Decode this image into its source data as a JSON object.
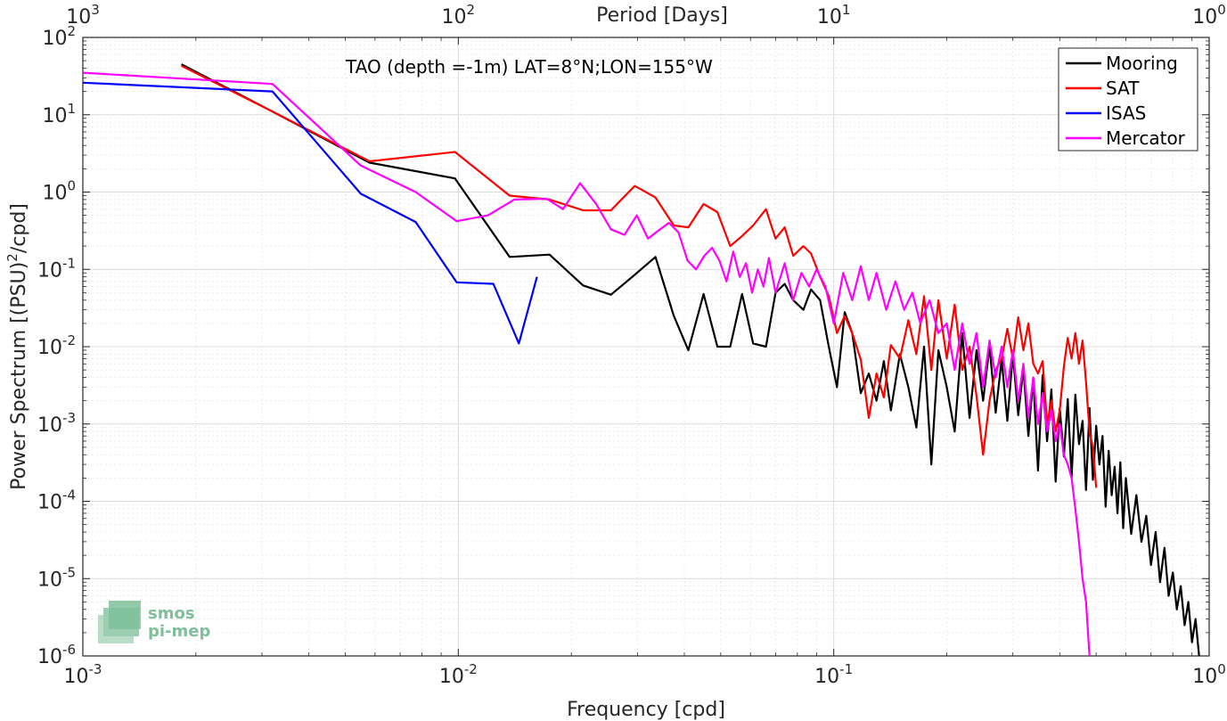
{
  "chart_data": {
    "type": "line",
    "title": "TAO (depth =-1m) LAT=8°N;LON=155°W",
    "xlabel": "Frequency [cpd]",
    "ylabel": "Power Spectrum [(PSU)",
    "ylabel_sup": "2",
    "ylabel_suffix": "/cpd]",
    "top_xlabel": "Period [Days]",
    "xscale": "log",
    "yscale": "log",
    "xlim": [
      0.001,
      1
    ],
    "ylim": [
      1e-06,
      100
    ],
    "grid": true,
    "legend_position": "top-right",
    "x_ticks": [
      {
        "base": "10",
        "exp": "-3"
      },
      {
        "base": "10",
        "exp": "-2"
      },
      {
        "base": "10",
        "exp": "-1"
      },
      {
        "base": "10",
        "exp": "0"
      }
    ],
    "y_ticks": [
      {
        "base": "10",
        "exp": "-6"
      },
      {
        "base": "10",
        "exp": "-5"
      },
      {
        "base": "10",
        "exp": "-4"
      },
      {
        "base": "10",
        "exp": "-3"
      },
      {
        "base": "10",
        "exp": "-2"
      },
      {
        "base": "10",
        "exp": "-1"
      },
      {
        "base": "10",
        "exp": "0"
      },
      {
        "base": "10",
        "exp": "1"
      },
      {
        "base": "10",
        "exp": "2"
      }
    ],
    "top_ticks": [
      {
        "base": "10",
        "exp": "3"
      },
      {
        "base": "10",
        "exp": "2"
      },
      {
        "base": "10",
        "exp": "1"
      },
      {
        "base": "10",
        "exp": "0"
      }
    ],
    "series": [
      {
        "name": "Mooring",
        "color": "#000000",
        "x": [
          0.00183,
          0.0032,
          0.0058,
          0.0098,
          0.0137,
          0.0175,
          0.0215,
          0.0255,
          0.0295,
          0.0335,
          0.0375,
          0.041,
          0.045,
          0.049,
          0.053,
          0.057,
          0.061,
          0.066,
          0.07,
          0.074,
          0.078,
          0.083,
          0.087,
          0.092,
          0.097,
          0.102,
          0.107,
          0.112,
          0.118,
          0.124,
          0.13,
          0.136,
          0.142,
          0.15,
          0.158,
          0.166,
          0.174,
          0.182,
          0.19,
          0.2,
          0.21,
          0.22,
          0.23,
          0.24,
          0.25,
          0.26,
          0.27,
          0.28,
          0.29,
          0.3,
          0.31,
          0.32,
          0.33,
          0.34,
          0.35,
          0.36,
          0.37,
          0.38,
          0.39,
          0.4,
          0.41,
          0.42,
          0.43,
          0.44,
          0.45,
          0.46,
          0.47,
          0.48,
          0.49,
          0.5,
          0.51,
          0.52,
          0.53,
          0.54,
          0.55,
          0.56,
          0.57,
          0.58,
          0.59,
          0.6,
          0.62,
          0.64,
          0.66,
          0.68,
          0.7,
          0.72,
          0.74,
          0.76,
          0.78,
          0.8,
          0.82,
          0.84,
          0.86,
          0.88,
          0.9,
          0.92,
          0.94
        ],
        "y": [
          45,
          11,
          2.4,
          1.5,
          0.145,
          0.155,
          0.062,
          0.047,
          0.085,
          0.145,
          0.025,
          0.009,
          0.048,
          0.01,
          0.01,
          0.048,
          0.011,
          0.01,
          0.05,
          0.065,
          0.04,
          0.03,
          0.055,
          0.04,
          0.01,
          0.003,
          0.028,
          0.015,
          0.0025,
          0.0045,
          0.002,
          0.0065,
          0.0015,
          0.008,
          0.003,
          0.0009,
          0.01,
          0.0003,
          0.009,
          0.003,
          0.0008,
          0.015,
          0.0012,
          0.009,
          0.002,
          0.01,
          0.0014,
          0.0068,
          0.0011,
          0.0079,
          0.0013,
          0.0052,
          0.0007,
          0.0039,
          0.00025,
          0.0043,
          0.0006,
          0.0028,
          0.00018,
          0.0016,
          0.00038,
          0.0021,
          0.0002,
          0.0024,
          0.00055,
          0.0011,
          0.00014,
          0.0016,
          0.00019,
          0.00095,
          0.0003,
          0.0007,
          8.5e-05,
          0.00045,
          0.00012,
          0.00028,
          7e-05,
          0.00032,
          4.5e-05,
          0.0002,
          3.8e-05,
          0.00012,
          3e-05,
          6.5e-05,
          1.5e-05,
          4e-05,
          9e-06,
          2.5e-05,
          6e-06,
          1.2e-05,
          4e-06,
          8e-06,
          2.5e-06,
          5e-06,
          1.5e-06,
          3e-06,
          1e-06
        ]
      },
      {
        "name": "SAT",
        "color": "#ff0000",
        "x": [
          0.00183,
          0.0032,
          0.0058,
          0.0098,
          0.0137,
          0.0175,
          0.0215,
          0.0255,
          0.0295,
          0.0335,
          0.0375,
          0.041,
          0.045,
          0.049,
          0.053,
          0.057,
          0.061,
          0.066,
          0.07,
          0.074,
          0.078,
          0.083,
          0.087,
          0.092,
          0.097,
          0.102,
          0.107,
          0.112,
          0.118,
          0.124,
          0.13,
          0.136,
          0.142,
          0.15,
          0.158,
          0.166,
          0.174,
          0.182,
          0.19,
          0.2,
          0.21,
          0.22,
          0.23,
          0.24,
          0.25,
          0.26,
          0.27,
          0.28,
          0.29,
          0.3,
          0.31,
          0.32,
          0.33,
          0.34,
          0.35,
          0.36,
          0.37,
          0.38,
          0.39,
          0.4,
          0.41,
          0.42,
          0.43,
          0.44,
          0.45,
          0.46,
          0.47,
          0.48,
          0.49,
          0.5
        ],
        "y": [
          43,
          11,
          2.5,
          3.3,
          0.9,
          0.8,
          0.58,
          0.58,
          1.2,
          0.85,
          0.37,
          0.35,
          0.7,
          0.55,
          0.2,
          0.27,
          0.37,
          0.6,
          0.25,
          0.35,
          0.15,
          0.2,
          0.16,
          0.08,
          0.045,
          0.015,
          0.025,
          0.015,
          0.0068,
          0.0012,
          0.0045,
          0.0022,
          0.0105,
          0.007,
          0.022,
          0.008,
          0.045,
          0.005,
          0.04,
          0.007,
          0.035,
          0.005,
          0.01,
          0.0023,
          0.0004,
          0.002,
          0.005,
          0.007,
          0.017,
          0.007,
          0.024,
          0.009,
          0.02,
          0.006,
          0.0045,
          0.0065,
          0.001,
          0.002,
          0.0008,
          0.0015,
          0.0055,
          0.013,
          0.007,
          0.015,
          0.006,
          0.012,
          0.0035,
          0.0008,
          0.0005,
          0.00015
        ]
      },
      {
        "name": "ISAS",
        "color": "#0000ff",
        "x": [
          0.001,
          0.0032,
          0.0055,
          0.0077,
          0.0099,
          0.0124,
          0.0145,
          0.0162
        ],
        "y": [
          26,
          20,
          0.95,
          0.41,
          0.068,
          0.065,
          0.011,
          0.08
        ]
      },
      {
        "name": "Mercator",
        "color": "#ff00ff",
        "x": [
          0.001,
          0.0032,
          0.0055,
          0.0077,
          0.0099,
          0.012,
          0.0141,
          0.0172,
          0.019,
          0.0211,
          0.0233,
          0.0255,
          0.0277,
          0.0299,
          0.032,
          0.0342,
          0.0364,
          0.0386,
          0.0408,
          0.043,
          0.0452,
          0.0474,
          0.0496,
          0.0518,
          0.054,
          0.0562,
          0.0584,
          0.0606,
          0.0628,
          0.065,
          0.0672,
          0.07,
          0.074,
          0.078,
          0.082,
          0.086,
          0.09,
          0.095,
          0.1,
          0.106,
          0.112,
          0.118,
          0.124,
          0.13,
          0.138,
          0.146,
          0.154,
          0.162,
          0.17,
          0.18,
          0.19,
          0.2,
          0.21,
          0.22,
          0.23,
          0.24,
          0.25,
          0.26,
          0.27,
          0.28,
          0.29,
          0.3,
          0.31,
          0.32,
          0.33,
          0.34,
          0.35,
          0.36,
          0.37,
          0.38,
          0.39,
          0.4,
          0.41,
          0.42,
          0.43,
          0.44,
          0.45,
          0.46,
          0.47,
          0.48
        ],
        "y": [
          35,
          25,
          2.2,
          1.0,
          0.42,
          0.5,
          0.8,
          0.82,
          0.6,
          1.3,
          0.7,
          0.33,
          0.28,
          0.5,
          0.25,
          0.32,
          0.4,
          0.3,
          0.13,
          0.1,
          0.15,
          0.19,
          0.13,
          0.07,
          0.17,
          0.08,
          0.12,
          0.05,
          0.1,
          0.06,
          0.14,
          0.05,
          0.12,
          0.04,
          0.09,
          0.06,
          0.1,
          0.06,
          0.02,
          0.09,
          0.04,
          0.11,
          0.04,
          0.09,
          0.03,
          0.07,
          0.03,
          0.05,
          0.02,
          0.04,
          0.015,
          0.02,
          0.005,
          0.02,
          0.006,
          0.015,
          0.003,
          0.012,
          0.004,
          0.01,
          0.003,
          0.009,
          0.002,
          0.006,
          0.0012,
          0.004,
          0.001,
          0.0025,
          0.0008,
          0.0015,
          0.0006,
          0.001,
          0.0004,
          0.0003,
          0.0002,
          8e-05,
          3e-05,
          1e-05,
          5e-06,
          1e-06
        ]
      }
    ]
  },
  "logo": {
    "line1": "smos",
    "line2": "pi-mep"
  }
}
